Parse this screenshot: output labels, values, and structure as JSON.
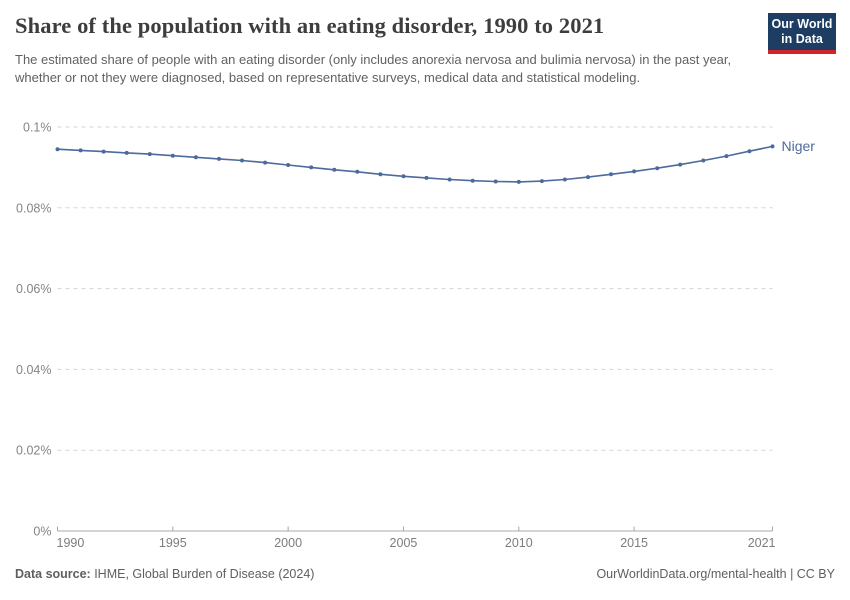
{
  "header": {
    "title": "Share of the population with an eating disorder, 1990 to 2021",
    "subtitle": "The estimated share of people with an eating disorder (only includes anorexia nervosa and bulimia nervosa) in the past year, whether or not they were diagnosed, based on representative surveys, medical data and statistical modeling.",
    "logo": {
      "line1": "Our World",
      "line2": "in Data",
      "bg_color": "#1d3d63",
      "accent_color": "#d0252b"
    }
  },
  "chart_data": {
    "type": "line",
    "title": "Share of the population with an eating disorder, 1990 to 2021",
    "xlabel": "",
    "ylabel": "",
    "unit": "%",
    "grid": "horizontal-dashed",
    "legend_position": "end-of-line-label",
    "xlim": [
      1990,
      2021
    ],
    "ylim": [
      0,
      0.1
    ],
    "x_ticks": [
      1990,
      1995,
      2000,
      2005,
      2010,
      2015,
      2021
    ],
    "y_ticks": [
      {
        "value": 0.0,
        "label": "0%"
      },
      {
        "value": 0.02,
        "label": "0.02%"
      },
      {
        "value": 0.04,
        "label": "0.04%"
      },
      {
        "value": 0.06,
        "label": "0.06%"
      },
      {
        "value": 0.08,
        "label": "0.08%"
      },
      {
        "value": 0.1,
        "label": "0.1%"
      }
    ],
    "x": [
      1990,
      1991,
      1992,
      1993,
      1994,
      1995,
      1996,
      1997,
      1998,
      1999,
      2000,
      2001,
      2002,
      2003,
      2004,
      2005,
      2006,
      2007,
      2008,
      2009,
      2010,
      2011,
      2012,
      2013,
      2014,
      2015,
      2016,
      2017,
      2018,
      2019,
      2020,
      2021
    ],
    "series": [
      {
        "name": "Niger",
        "color": "#4c6a9c",
        "values": [
          0.0945,
          0.0942,
          0.0939,
          0.0936,
          0.0933,
          0.0929,
          0.0925,
          0.0921,
          0.0917,
          0.0912,
          0.0906,
          0.09,
          0.0894,
          0.0889,
          0.0883,
          0.0878,
          0.0874,
          0.087,
          0.0867,
          0.0865,
          0.0864,
          0.0866,
          0.087,
          0.0876,
          0.0883,
          0.089,
          0.0898,
          0.0907,
          0.0917,
          0.0928,
          0.094,
          0.0952
        ]
      }
    ]
  },
  "footer": {
    "source_label": "Data source:",
    "source_text": " IHME, Global Burden of Disease (2024)",
    "attribution": "OurWorldinData.org/mental-health | CC BY"
  }
}
